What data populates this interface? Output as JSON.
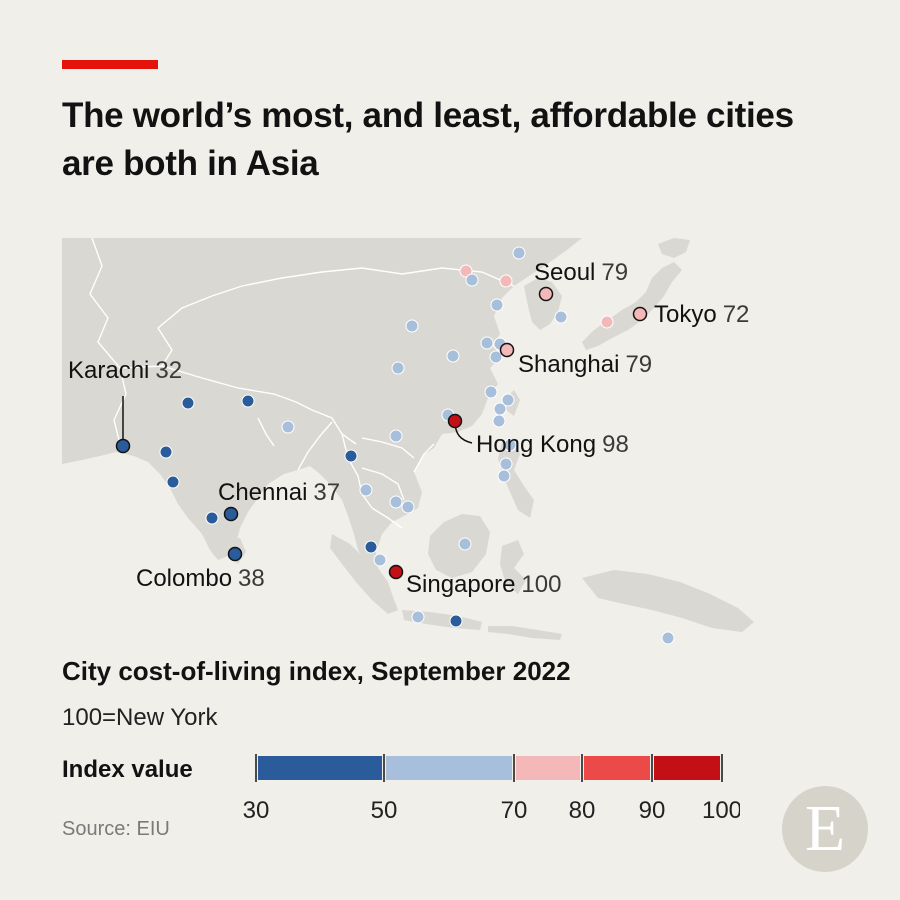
{
  "title": "The world’s most, and least, affordable cities are both in Asia",
  "subtitle": "City cost-of-living index, September 2022",
  "note": "100=New York",
  "legend": {
    "title": "Index value",
    "ticks": [
      "30",
      "50",
      "70",
      "80",
      "90",
      "100"
    ],
    "bins": [
      {
        "from": 30,
        "to": 50,
        "color": "#2a5c9b"
      },
      {
        "from": 50,
        "to": 70,
        "color": "#a8bfdc"
      },
      {
        "from": 70,
        "to": 80,
        "color": "#f5b8b9"
      },
      {
        "from": 80,
        "to": 90,
        "color": "#eb4a48"
      },
      {
        "from": 90,
        "to": 100,
        "color": "#c30f16"
      }
    ]
  },
  "source": "Source: EIU",
  "logo_letter": "E",
  "colors": {
    "accent": "#e3120b",
    "land": "#d9d8d2",
    "borders": "#ffffff",
    "background": "#f0efea"
  },
  "labelled_cities": [
    {
      "name": "Karachi",
      "value": 32
    },
    {
      "name": "Chennai",
      "value": 37
    },
    {
      "name": "Colombo",
      "value": 38
    },
    {
      "name": "Seoul",
      "value": 79
    },
    {
      "name": "Tokyo",
      "value": 72
    },
    {
      "name": "Shanghai",
      "value": 79
    },
    {
      "name": "Hong Kong",
      "value": 98
    },
    {
      "name": "Singapore",
      "value": 100
    }
  ]
}
